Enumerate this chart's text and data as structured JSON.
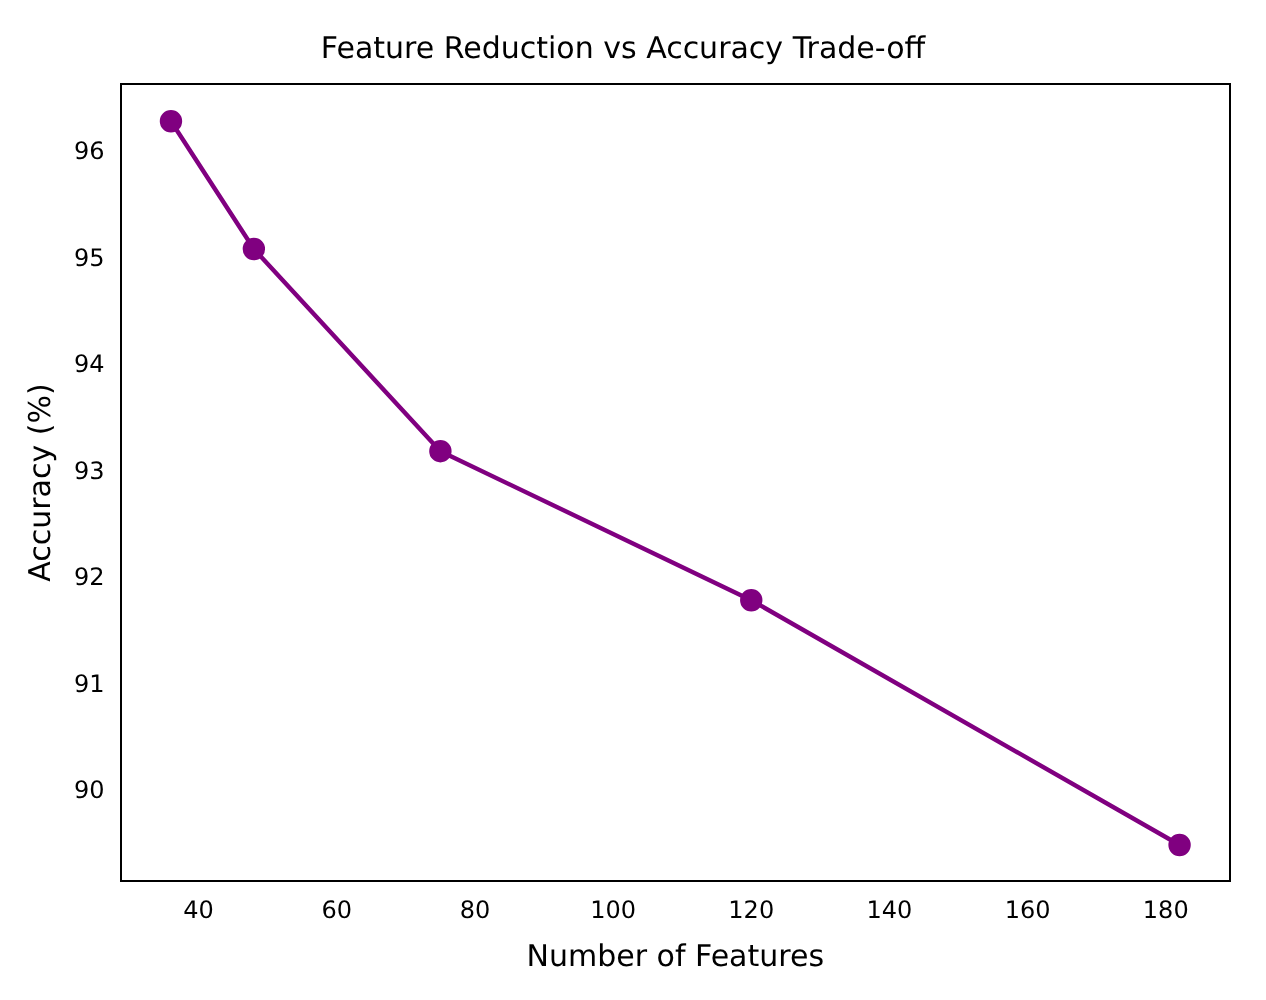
{
  "chart_data": {
    "type": "line",
    "title": "Feature Reduction vs Accuracy Trade-off",
    "xlabel": "Number of Features",
    "ylabel": "Accuracy (%)",
    "x": [
      36,
      48,
      75,
      120,
      182
    ],
    "series": [
      {
        "color": "#800080",
        "values": [
          96.3,
          95.1,
          93.2,
          91.8,
          89.5
        ]
      }
    ],
    "xlim": [
      28.7,
      189.3
    ],
    "xticks": [
      40,
      60,
      80,
      100,
      120,
      140,
      160,
      180
    ],
    "ylim": [
      89.16,
      96.65
    ],
    "yticks": [
      90,
      91,
      92,
      93,
      94,
      95,
      96
    ],
    "marker": "circle",
    "line_style": "solid",
    "grid": false,
    "legend": false
  }
}
